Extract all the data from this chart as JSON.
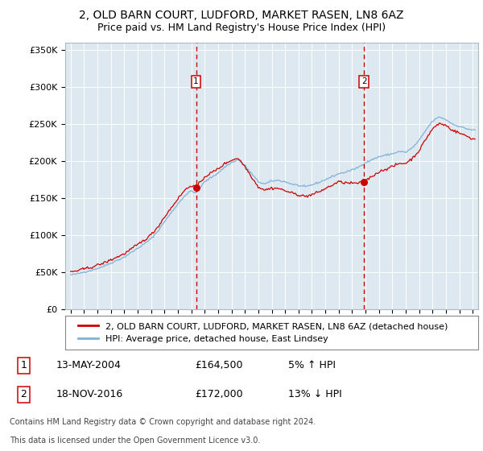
{
  "title": "2, OLD BARN COURT, LUDFORD, MARKET RASEN, LN8 6AZ",
  "subtitle": "Price paid vs. HM Land Registry's House Price Index (HPI)",
  "legend_line1": "2, OLD BARN COURT, LUDFORD, MARKET RASEN, LN8 6AZ (detached house)",
  "legend_line2": "HPI: Average price, detached house, East Lindsey",
  "footnote1": "Contains HM Land Registry data © Crown copyright and database right 2024.",
  "footnote2": "This data is licensed under the Open Government Licence v3.0.",
  "transaction1_label": "1",
  "transaction1_date": "13-MAY-2004",
  "transaction1_price": "£164,500",
  "transaction1_hpi": "5% ↑ HPI",
  "transaction1_x": 2004.36,
  "transaction1_y": 164500,
  "transaction2_label": "2",
  "transaction2_date": "18-NOV-2016",
  "transaction2_price": "£172,000",
  "transaction2_hpi": "13% ↓ HPI",
  "transaction2_x": 2016.88,
  "transaction2_y": 172000,
  "ylim": [
    0,
    360000
  ],
  "yticks": [
    0,
    50000,
    100000,
    150000,
    200000,
    250000,
    300000,
    350000
  ],
  "xlim_min": 1994.6,
  "xlim_max": 2025.4,
  "background_color": "#dde8f0",
  "hpi_color": "#7fb2d8",
  "price_color": "#cc0000",
  "marker_box_color": "#cc0000",
  "vline_color": "#cc0000",
  "grid_color": "#ffffff",
  "title_fontsize": 10,
  "subtitle_fontsize": 9,
  "legend_fontsize": 8,
  "tick_fontsize": 7.5,
  "ytick_fontsize": 8,
  "table_fontsize": 9,
  "footnote_fontsize": 7
}
